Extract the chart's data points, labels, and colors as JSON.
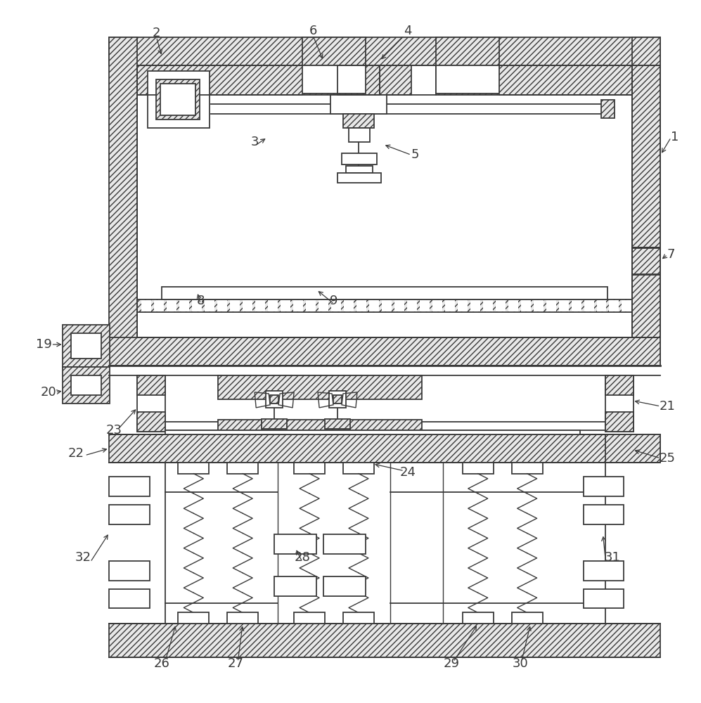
{
  "bg_color": "#ffffff",
  "lc": "#3a3a3a",
  "lw": 1.3,
  "hatch": "////",
  "hatch_fc": "#e8e8e8",
  "label_fs": 13
}
